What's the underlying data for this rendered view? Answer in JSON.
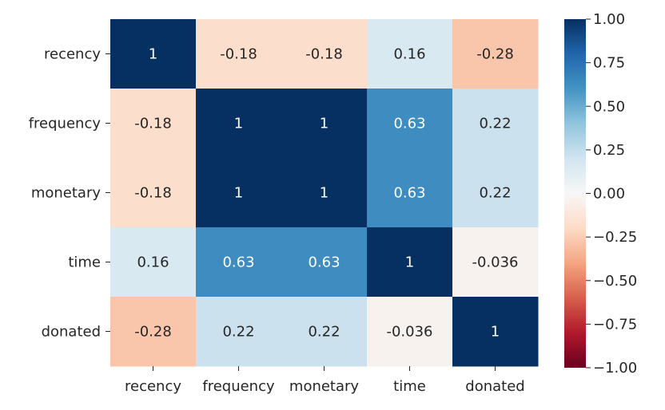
{
  "chart_data": {
    "type": "heatmap",
    "title": "",
    "xlabel": "",
    "ylabel": "",
    "x_categories": [
      "recency",
      "frequency",
      "monetary",
      "time",
      "donated"
    ],
    "y_categories": [
      "recency",
      "frequency",
      "monetary",
      "time",
      "donated"
    ],
    "values": [
      [
        1,
        -0.18,
        -0.18,
        0.16,
        -0.28
      ],
      [
        -0.18,
        1,
        1,
        0.63,
        0.22
      ],
      [
        -0.18,
        1,
        1,
        0.63,
        0.22
      ],
      [
        0.16,
        0.63,
        0.63,
        1,
        -0.036
      ],
      [
        -0.28,
        0.22,
        0.22,
        -0.036,
        1
      ]
    ],
    "annotations": [
      [
        "1",
        "-0.18",
        "-0.18",
        "0.16",
        "-0.28"
      ],
      [
        "-0.18",
        "1",
        "1",
        "0.63",
        "0.22"
      ],
      [
        "-0.18",
        "1",
        "1",
        "0.63",
        "0.22"
      ],
      [
        "0.16",
        "0.63",
        "0.63",
        "1",
        "-0.036"
      ],
      [
        "-0.28",
        "0.22",
        "0.22",
        "-0.036",
        "1"
      ]
    ],
    "colorbar": {
      "colormap": "RdBu",
      "range": [
        -1,
        1
      ],
      "ticks": [
        1,
        0.75,
        0.5,
        0.25,
        0,
        -0.25,
        -0.5,
        -0.75,
        -1
      ],
      "tick_labels": [
        "1.00",
        "0.75",
        "0.50",
        "0.25",
        "0.00",
        "−0.25",
        "−0.50",
        "−0.75",
        "−1.00"
      ]
    }
  }
}
